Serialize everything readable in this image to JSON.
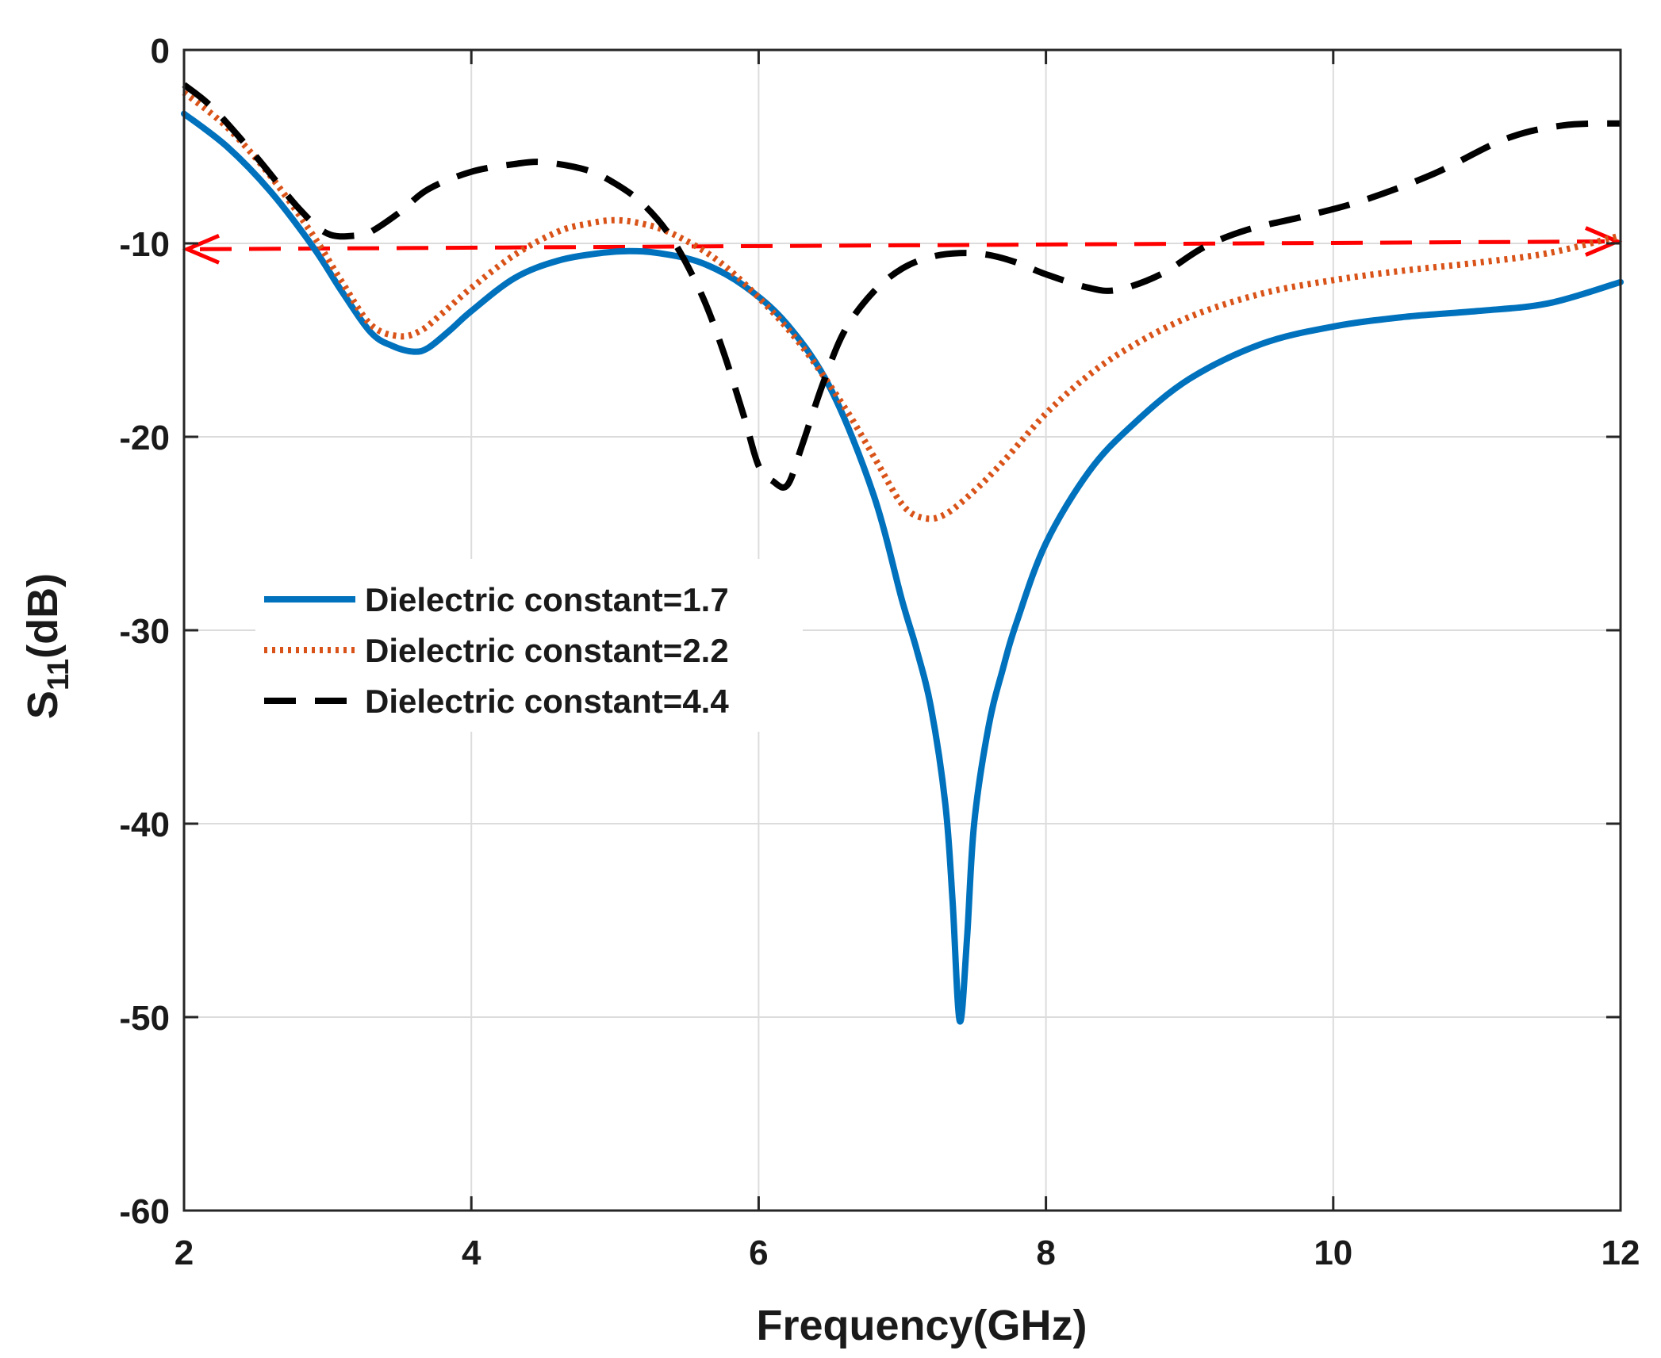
{
  "chart_data": {
    "type": "line",
    "title": "",
    "xlabel": "Frequency(GHz)",
    "ylabel_main": "S",
    "ylabel_sub": "11",
    "ylabel_unit": "(dB)",
    "xlim": [
      2,
      12
    ],
    "ylim": [
      -60,
      0
    ],
    "xticks": [
      2,
      4,
      6,
      8,
      10,
      12
    ],
    "yticks": [
      0,
      -10,
      -20,
      -30,
      -40,
      -50,
      -60
    ],
    "xtick_labels": [
      "2",
      "4",
      "6",
      "8",
      "10",
      "12"
    ],
    "ytick_labels": [
      "0",
      "-10",
      "-20",
      "-30",
      "-40",
      "-50",
      "-60"
    ],
    "grid": true,
    "legend_position": "center-left",
    "series": [
      {
        "name": "Dielectric constant=1.7",
        "color": "#0072BD",
        "style": "solid",
        "x": [
          2.0,
          2.3,
          2.6,
          2.9,
          3.1,
          3.3,
          3.45,
          3.6,
          3.7,
          3.85,
          4.0,
          4.3,
          4.6,
          4.9,
          5.1,
          5.3,
          5.6,
          5.9,
          6.2,
          6.5,
          6.8,
          7.0,
          7.1,
          7.2,
          7.3,
          7.35,
          7.4,
          7.45,
          7.5,
          7.6,
          7.7,
          7.8,
          8.0,
          8.3,
          8.6,
          9.0,
          9.5,
          10.0,
          10.5,
          11.0,
          11.5,
          12.0
        ],
        "y": [
          -3.3,
          -5.0,
          -7.3,
          -10.2,
          -12.5,
          -14.6,
          -15.3,
          -15.6,
          -15.4,
          -14.5,
          -13.5,
          -11.8,
          -10.9,
          -10.5,
          -10.4,
          -10.5,
          -11.0,
          -12.2,
          -14.2,
          -17.5,
          -23.0,
          -28.5,
          -31.0,
          -34.0,
          -39.0,
          -44.0,
          -50.2,
          -46.0,
          -40.0,
          -35.0,
          -32.0,
          -29.5,
          -25.5,
          -21.8,
          -19.4,
          -17.0,
          -15.2,
          -14.3,
          -13.8,
          -13.5,
          -13.1,
          -12.0
        ]
      },
      {
        "name": "Dielectric constant=2.2",
        "color": "#D95319",
        "style": "dotted",
        "x": [
          2.0,
          2.3,
          2.6,
          2.9,
          3.1,
          3.3,
          3.5,
          3.65,
          3.8,
          4.0,
          4.3,
          4.6,
          4.8,
          5.0,
          5.2,
          5.4,
          5.7,
          6.0,
          6.3,
          6.6,
          6.8,
          7.0,
          7.15,
          7.3,
          7.5,
          7.7,
          8.0,
          8.3,
          8.6,
          9.0,
          9.5,
          10.0,
          10.5,
          11.0,
          11.5,
          12.0
        ],
        "y": [
          -2.2,
          -4.0,
          -6.5,
          -9.6,
          -12.0,
          -14.2,
          -14.8,
          -14.5,
          -13.6,
          -12.3,
          -10.6,
          -9.4,
          -9.0,
          -8.8,
          -9.0,
          -9.5,
          -10.8,
          -12.8,
          -15.3,
          -18.5,
          -21.0,
          -23.5,
          -24.2,
          -24.0,
          -22.8,
          -21.3,
          -18.8,
          -16.8,
          -15.3,
          -13.8,
          -12.6,
          -11.9,
          -11.4,
          -11.0,
          -10.5,
          -9.6
        ]
      },
      {
        "name": "Dielectric constant=4.4",
        "color": "#000000",
        "style": "dashed",
        "x": [
          2.0,
          2.2,
          2.5,
          2.8,
          3.0,
          3.2,
          3.3,
          3.5,
          3.7,
          4.0,
          4.3,
          4.5,
          4.8,
          5.0,
          5.2,
          5.4,
          5.6,
          5.75,
          5.9,
          6.0,
          6.1,
          6.2,
          6.3,
          6.45,
          6.6,
          6.8,
          7.0,
          7.2,
          7.4,
          7.6,
          7.8,
          8.0,
          8.3,
          8.5,
          8.8,
          9.1,
          9.4,
          9.8,
          10.2,
          10.7,
          11.2,
          11.6,
          12.0
        ],
        "y": [
          -1.8,
          -3.0,
          -5.5,
          -8.2,
          -9.5,
          -9.6,
          -9.4,
          -8.4,
          -7.2,
          -6.3,
          -5.9,
          -5.8,
          -6.2,
          -6.9,
          -8.0,
          -9.8,
          -12.6,
          -15.5,
          -19.0,
          -21.5,
          -22.3,
          -22.5,
          -20.5,
          -17.2,
          -14.5,
          -12.5,
          -11.3,
          -10.7,
          -10.5,
          -10.6,
          -11.0,
          -11.6,
          -12.3,
          -12.4,
          -11.6,
          -10.2,
          -9.3,
          -8.6,
          -7.8,
          -6.4,
          -4.6,
          -3.9,
          -3.8
        ]
      }
    ],
    "reference_line": {
      "y": -10,
      "x_start": 2.0,
      "x_end": 12.0,
      "y_start": -10.3,
      "y_end": -9.9,
      "color": "#FF0000",
      "style": "dashed double-arrow"
    }
  }
}
